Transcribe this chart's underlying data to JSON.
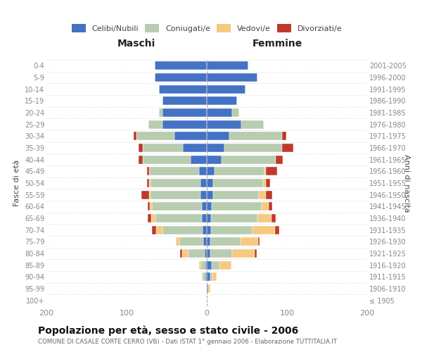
{
  "age_groups": [
    "100+",
    "95-99",
    "90-94",
    "85-89",
    "80-84",
    "75-79",
    "70-74",
    "65-69",
    "60-64",
    "55-59",
    "50-54",
    "45-49",
    "40-44",
    "35-39",
    "30-34",
    "25-29",
    "20-24",
    "15-19",
    "10-14",
    "5-9",
    "0-4"
  ],
  "birth_years": [
    "≤ 1905",
    "1906-1910",
    "1911-1915",
    "1916-1920",
    "1921-1925",
    "1926-1930",
    "1931-1935",
    "1936-1940",
    "1941-1945",
    "1946-1950",
    "1951-1955",
    "1956-1960",
    "1961-1965",
    "1966-1970",
    "1971-1975",
    "1976-1980",
    "1981-1985",
    "1986-1990",
    "1991-1995",
    "1996-2000",
    "2001-2005"
  ],
  "maschi_celibe": [
    0,
    0,
    2,
    2,
    3,
    4,
    5,
    6,
    6,
    8,
    8,
    10,
    20,
    30,
    40,
    55,
    55,
    55,
    60,
    65,
    65
  ],
  "maschi_coniugato": [
    0,
    0,
    3,
    5,
    20,
    30,
    50,
    58,
    62,
    62,
    62,
    62,
    60,
    50,
    48,
    18,
    5,
    0,
    0,
    0,
    0
  ],
  "maschi_vedovo": [
    0,
    0,
    1,
    3,
    8,
    5,
    8,
    5,
    3,
    2,
    2,
    0,
    0,
    0,
    0,
    0,
    0,
    0,
    0,
    0,
    0
  ],
  "maschi_divorziato": [
    0,
    0,
    0,
    0,
    2,
    0,
    5,
    5,
    3,
    10,
    3,
    3,
    5,
    5,
    3,
    0,
    0,
    0,
    0,
    0,
    0
  ],
  "femmine_nubile": [
    0,
    2,
    4,
    6,
    4,
    4,
    5,
    5,
    6,
    8,
    8,
    10,
    18,
    22,
    28,
    43,
    32,
    38,
    48,
    63,
    52
  ],
  "femmine_coniugata": [
    0,
    0,
    3,
    10,
    28,
    38,
    52,
    58,
    62,
    57,
    62,
    62,
    68,
    72,
    66,
    28,
    8,
    0,
    0,
    0,
    0
  ],
  "femmine_vedova": [
    0,
    2,
    5,
    15,
    28,
    22,
    28,
    18,
    9,
    9,
    4,
    2,
    0,
    0,
    0,
    0,
    0,
    0,
    0,
    0,
    0
  ],
  "femmine_divorziata": [
    0,
    0,
    0,
    0,
    2,
    2,
    5,
    5,
    5,
    8,
    5,
    14,
    9,
    14,
    5,
    0,
    0,
    0,
    0,
    0,
    0
  ],
  "color_celibe": "#4472C4",
  "color_coniugato": "#B8CCB0",
  "color_vedovo": "#F5C97F",
  "color_divorziato": "#C0392B",
  "title": "Popolazione per età, sesso e stato civile - 2006",
  "subtitle": "COMUNE DI CASALE CORTE CERRO (VB) - Dati ISTAT 1° gennaio 2006 - Elaborazione TUTTITALIA.IT",
  "label_maschi": "Maschi",
  "label_femmine": "Femmine",
  "ylabel_left": "Fasce di età",
  "ylabel_right": "Anni di nascita",
  "legend_labels": [
    "Celibi/Nubili",
    "Coniugati/e",
    "Vedovi/e",
    "Divorziati/e"
  ],
  "xlim": 200,
  "bg_color": "#ffffff",
  "grid_color": "#cccccc",
  "tick_color": "#888888",
  "label_color": "#444444"
}
